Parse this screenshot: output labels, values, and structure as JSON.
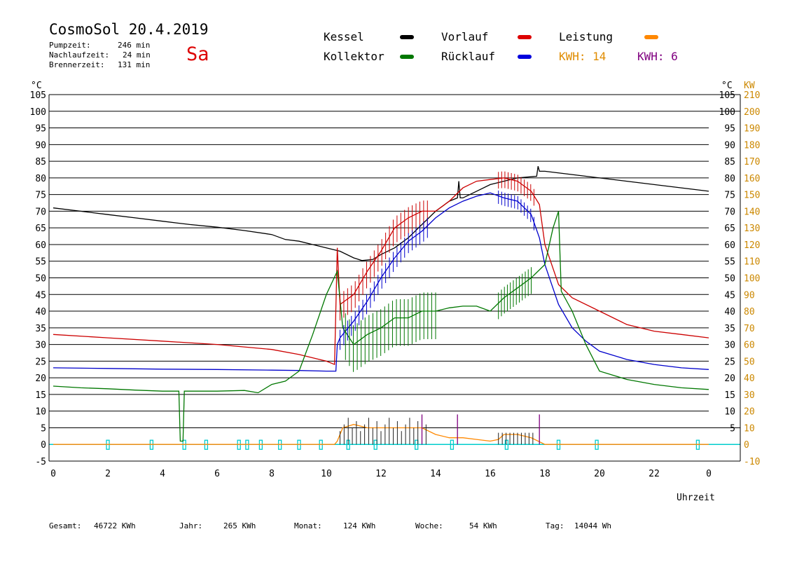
{
  "header": {
    "title": "CosmoSol 20.4.2019",
    "day": "Sa",
    "stats": [
      {
        "label": "Pumpzeit:",
        "value": "246 min"
      },
      {
        "label": "Nachlaufzeit:",
        "value": "24 min"
      },
      {
        "label": "Brennerzeit:",
        "value": "131 min"
      }
    ]
  },
  "legend": {
    "kessel": "Kessel",
    "vorlauf": "Vorlauf",
    "leistung": "Leistung",
    "kollektor": "Kollektor",
    "ruecklauf": "Rücklauf",
    "kwh_orange": "KWH: 14",
    "kwh_purple": "KWH: 6"
  },
  "footer": [
    {
      "label": "Gesamt:",
      "value": "46722 KWh"
    },
    {
      "label": "Jahr:",
      "value": "265 KWh"
    },
    {
      "label": "Monat:",
      "value": "124 KWh"
    },
    {
      "label": "Woche:",
      "value": "54 KWh"
    },
    {
      "label": "Tag:",
      "value": "14044 Wh"
    }
  ],
  "colors": {
    "kessel": "#000000",
    "vorlauf": "#cc0000",
    "leistung": "#ff8800",
    "kollektor": "#007700",
    "ruecklauf": "#0000cc",
    "pump": "#00cccc",
    "kw_axis": "#cc8800",
    "purple": "#800080"
  },
  "chart_data": {
    "type": "line",
    "xlabel": "Uhrzeit",
    "ylabel": "°C",
    "ylabel_right": "KW",
    "xlim": [
      0,
      24
    ],
    "ylim": [
      -5,
      105
    ],
    "ylim_right": [
      -10,
      210
    ],
    "x_ticks": [
      "0",
      "2",
      "4",
      "6",
      "8",
      "10",
      "12",
      "14",
      "16",
      "18",
      "20",
      "22",
      "0"
    ],
    "y_ticks_left": [
      "105",
      "100",
      "95",
      "90",
      "85",
      "80",
      "75",
      "70",
      "65",
      "60",
      "55",
      "50",
      "45",
      "40",
      "35",
      "30",
      "25",
      "20",
      "15",
      "10",
      "5",
      "0",
      "-5"
    ],
    "y_ticks_right": [
      "105",
      "100",
      "95",
      "90",
      "85",
      "80",
      "75",
      "70",
      "65",
      "60",
      "55",
      "50",
      "45",
      "40",
      "35",
      "30",
      "25",
      "20",
      "15",
      "10",
      "5"
    ],
    "y_ticks_kw": [
      "210",
      "200",
      "190",
      "180",
      "170",
      "160",
      "150",
      "140",
      "130",
      "120",
      "110",
      "100",
      "90",
      "80",
      "70",
      "60",
      "50",
      "40",
      "30",
      "20",
      "10",
      "0",
      "-10"
    ],
    "grid": true,
    "series": [
      {
        "name": "Kessel",
        "color": "#000000",
        "x": [
          0,
          1,
          2,
          3,
          4,
          5,
          6,
          7,
          8,
          8.5,
          9,
          9.5,
          10,
          10.5,
          11,
          11.3,
          11.7,
          12,
          12.5,
          13,
          13.5,
          14,
          14.5,
          14.8,
          14.85,
          14.9,
          15,
          15.5,
          16,
          16.5,
          17,
          17.7,
          17.75,
          17.8,
          18,
          19,
          20,
          21,
          22,
          23,
          24
        ],
        "y": [
          71,
          70,
          69,
          68,
          67,
          66,
          65.2,
          64.2,
          63,
          61.5,
          61,
          60,
          59,
          58,
          56,
          55.2,
          55.5,
          57,
          59,
          62,
          66,
          70,
          73,
          74,
          79,
          74,
          74,
          76,
          78,
          79,
          80,
          80.5,
          83.5,
          82,
          82,
          81,
          80,
          79,
          78,
          77,
          76
        ]
      },
      {
        "name": "Vorlauf",
        "color": "#cc0000",
        "x": [
          0,
          2,
          4,
          6,
          8,
          9,
          10,
          10.3,
          10.4,
          10.5,
          11,
          11.5,
          12,
          12.5,
          13,
          13.5,
          14,
          14.5,
          15,
          15.5,
          16,
          16.5,
          17,
          17.5,
          17.8,
          18,
          18.5,
          19,
          20,
          21,
          22,
          23,
          24
        ],
        "y": [
          33,
          32,
          31,
          30,
          28.5,
          27,
          25,
          24,
          59,
          42,
          45,
          52,
          58,
          65,
          68,
          70,
          70,
          73,
          77,
          79,
          79.5,
          80,
          79,
          76,
          72,
          60,
          48,
          44,
          40,
          36,
          34,
          33,
          32
        ]
      },
      {
        "name": "Rücklauf",
        "color": "#0000cc",
        "x": [
          0,
          2,
          4,
          6,
          8,
          9,
          10,
          10.35,
          10.4,
          10.5,
          11,
          11.5,
          12,
          12.5,
          13,
          13.5,
          14,
          14.5,
          15,
          15.5,
          16,
          16.5,
          17,
          17.5,
          17.8,
          18,
          18.5,
          19,
          19.5,
          20,
          21,
          22,
          23,
          24
        ],
        "y": [
          23,
          22.8,
          22.6,
          22.5,
          22.3,
          22.2,
          22,
          22,
          30,
          32,
          37,
          43,
          50,
          56,
          61,
          64,
          68,
          71,
          73,
          74.5,
          75.5,
          74,
          73,
          69,
          62,
          54,
          42,
          35,
          31,
          28,
          25.5,
          24,
          23,
          22.5
        ]
      },
      {
        "name": "Kollektor",
        "color": "#007700",
        "x": [
          0,
          1,
          2,
          3,
          4,
          4.6,
          4.65,
          4.75,
          4.8,
          5,
          6,
          7,
          7.5,
          8,
          8.5,
          9,
          9.5,
          10,
          10.4,
          10.6,
          11,
          11.5,
          12,
          12.5,
          13,
          13.5,
          14,
          14.5,
          15,
          15.5,
          16,
          16.5,
          17,
          17.5,
          18,
          18.3,
          18.5,
          18.6,
          19,
          19.5,
          20,
          21,
          22,
          23,
          24
        ],
        "y": [
          17.5,
          17,
          16.7,
          16.3,
          16,
          16,
          1,
          1,
          16,
          16,
          16,
          16.2,
          15.5,
          18,
          19,
          22,
          33,
          45,
          52,
          35,
          30,
          33,
          35,
          38,
          38,
          40,
          40,
          41,
          41.5,
          41.5,
          40,
          44,
          47,
          50,
          54,
          65,
          70,
          46,
          40,
          30,
          22,
          19.5,
          18,
          17,
          16.5
        ]
      },
      {
        "name": "Leistung",
        "color": "#ff8800",
        "x": [
          0,
          10.3,
          10.4,
          10.6,
          11,
          11.5,
          12,
          12.5,
          13,
          13.5,
          14,
          14.5,
          15,
          15.5,
          16,
          16.3,
          16.5,
          17,
          17.5,
          18,
          24
        ],
        "y": [
          0,
          0,
          1,
          5,
          6,
          5,
          5,
          5,
          5,
          5,
          3,
          2,
          2,
          1.5,
          1,
          1.5,
          3,
          3,
          2,
          0,
          0
        ]
      }
    ]
  }
}
